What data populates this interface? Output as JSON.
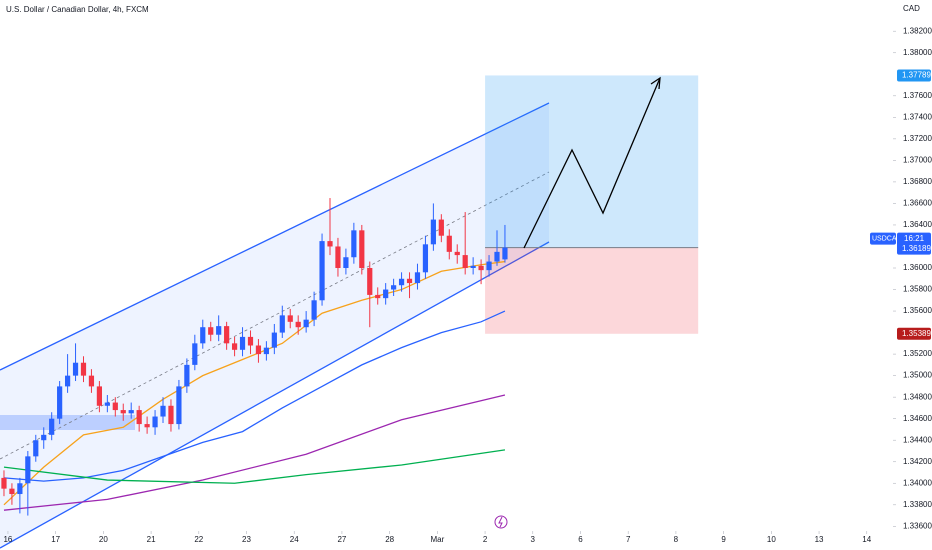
{
  "chart_data": {
    "type": "candlestick",
    "title": "U.S. Dollar / Canadian Dollar, 4h, FXCM",
    "currency": "CAD",
    "symbol": "USDCAD",
    "countdown": "16:21",
    "up_color": "#2962ff",
    "down_color": "#f23645",
    "open": [
      1.3405,
      1.3395,
      1.339,
      1.34,
      1.3425,
      1.344,
      1.3445,
      1.346,
      1.349,
      1.35,
      1.3512,
      1.35,
      1.349,
      1.3472,
      1.3475,
      1.3468,
      1.3465,
      1.3468,
      1.3455,
      1.3452,
      1.3462,
      1.3472,
      1.3455,
      1.349,
      1.351,
      1.353,
      1.3545,
      1.3538,
      1.3546,
      1.353,
      1.3524,
      1.3536,
      1.3528,
      1.352,
      1.3526,
      1.354,
      1.3556,
      1.355,
      1.3545,
      1.3552,
      1.357,
      1.3625,
      1.362,
      1.36,
      1.361,
      1.3635,
      1.36,
      1.3575,
      1.3572,
      1.358,
      1.3584,
      1.359,
      1.3586,
      1.3596,
      1.3622,
      1.3645,
      1.363,
      1.3615,
      1.3612,
      1.36,
      1.3602,
      1.3598,
      1.3606,
      1.3608
    ],
    "high": [
      1.3412,
      1.34,
      1.3405,
      1.343,
      1.3445,
      1.3452,
      1.3466,
      1.3495,
      1.352,
      1.353,
      1.3518,
      1.3506,
      1.3495,
      1.3482,
      1.348,
      1.3474,
      1.3475,
      1.3472,
      1.3462,
      1.3468,
      1.348,
      1.3478,
      1.3496,
      1.3516,
      1.3538,
      1.3552,
      1.355,
      1.3556,
      1.355,
      1.3536,
      1.3545,
      1.3542,
      1.3534,
      1.3532,
      1.3548,
      1.3565,
      1.3562,
      1.3556,
      1.356,
      1.3578,
      1.3632,
      1.3665,
      1.3628,
      1.3618,
      1.3642,
      1.364,
      1.3606,
      1.3582,
      1.3586,
      1.359,
      1.3596,
      1.3596,
      1.3604,
      1.363,
      1.366,
      1.365,
      1.3636,
      1.3622,
      1.3652,
      1.361,
      1.3608,
      1.3612,
      1.3635,
      1.364
    ],
    "low": [
      1.3388,
      1.338,
      1.3372,
      1.337,
      1.342,
      1.3432,
      1.344,
      1.3455,
      1.3484,
      1.3495,
      1.3494,
      1.3484,
      1.3466,
      1.3466,
      1.3462,
      1.3458,
      1.346,
      1.3448,
      1.3446,
      1.3445,
      1.3456,
      1.3448,
      1.345,
      1.3484,
      1.3505,
      1.3525,
      1.3532,
      1.3532,
      1.3524,
      1.3518,
      1.3518,
      1.352,
      1.3512,
      1.3514,
      1.352,
      1.3535,
      1.3544,
      1.3538,
      1.354,
      1.3546,
      1.3565,
      1.3612,
      1.3592,
      1.3594,
      1.3604,
      1.3594,
      1.3545,
      1.3566,
      1.3566,
      1.3574,
      1.3578,
      1.3572,
      1.358,
      1.359,
      1.3616,
      1.3624,
      1.3608,
      1.3604,
      1.3594,
      1.3594,
      1.3585,
      1.3592,
      1.3602,
      1.3605
    ],
    "close": [
      1.3395,
      1.339,
      1.34,
      1.3425,
      1.344,
      1.3445,
      1.346,
      1.349,
      1.35,
      1.3512,
      1.35,
      1.349,
      1.3472,
      1.3475,
      1.3468,
      1.3465,
      1.3468,
      1.3455,
      1.3452,
      1.3462,
      1.3472,
      1.3455,
      1.349,
      1.351,
      1.353,
      1.3545,
      1.3538,
      1.3546,
      1.353,
      1.3524,
      1.3536,
      1.3528,
      1.352,
      1.3526,
      1.354,
      1.3556,
      1.355,
      1.3545,
      1.3552,
      1.357,
      1.3625,
      1.362,
      1.36,
      1.361,
      1.3635,
      1.36,
      1.3575,
      1.3572,
      1.358,
      1.3584,
      1.359,
      1.3586,
      1.3596,
      1.3622,
      1.3645,
      1.363,
      1.3615,
      1.3612,
      1.36,
      1.3602,
      1.3598,
      1.3606,
      1.3615,
      1.3619
    ],
    "series": [
      {
        "color": "#f7a21b",
        "x": [
          0,
          5,
          10,
          15,
          20,
          25,
          30,
          35,
          40,
          45,
          50,
          55,
          60,
          63
        ],
        "values": [
          1.338,
          1.3415,
          1.3445,
          1.3452,
          1.3478,
          1.35,
          1.3515,
          1.353,
          1.3558,
          1.357,
          1.358,
          1.3597,
          1.3603,
          1.3606
        ]
      },
      {
        "color": "#2962ff",
        "x": [
          0,
          5,
          10,
          15,
          20,
          25,
          30,
          35,
          40,
          45,
          50,
          55,
          60,
          63
        ],
        "values": [
          1.3405,
          1.3402,
          1.3405,
          1.3412,
          1.3425,
          1.3438,
          1.3448,
          1.347,
          1.349,
          1.351,
          1.3526,
          1.354,
          1.355,
          1.356
        ]
      },
      {
        "color": "#9c27b0",
        "x": [
          0,
          13,
          25,
          38,
          50,
          63
        ],
        "values": [
          1.3375,
          1.3385,
          1.3403,
          1.3427,
          1.3459,
          1.3482
        ]
      },
      {
        "color": "#00b050",
        "x": [
          0,
          13,
          29,
          38,
          50,
          63
        ],
        "values": [
          1.3415,
          1.3403,
          1.34,
          1.3408,
          1.3417,
          1.3431
        ]
      }
    ],
    "position": {
      "entry": 1.36189,
      "target": 1.37789,
      "stop": 1.35389,
      "start": 60.5,
      "end": 87.3
    },
    "xlim": [
      -0.5,
      111.8
    ],
    "ylim": [
      1.3338,
      1.3849
    ],
    "xticks": [
      {
        "value": 0.5,
        "label": "16"
      },
      {
        "value": 6.5,
        "label": "17"
      },
      {
        "value": 12.5,
        "label": "20"
      },
      {
        "value": 18.5,
        "label": "21"
      },
      {
        "value": 24.5,
        "label": "22"
      },
      {
        "value": 30.5,
        "label": "23"
      },
      {
        "value": 36.5,
        "label": "24"
      },
      {
        "value": 42.5,
        "label": "27"
      },
      {
        "value": 48.5,
        "label": "28"
      },
      {
        "value": 54.5,
        "label": "Mar"
      },
      {
        "value": 60.5,
        "label": "2"
      },
      {
        "value": 66.5,
        "label": "3"
      },
      {
        "value": 72.5,
        "label": "6"
      },
      {
        "value": 78.5,
        "label": "7"
      },
      {
        "value": 84.5,
        "label": "8"
      },
      {
        "value": 90.5,
        "label": "9"
      },
      {
        "value": 96.5,
        "label": "10"
      },
      {
        "value": 102.5,
        "label": "13"
      },
      {
        "value": 108.5,
        "label": "14"
      }
    ],
    "yticks": [
      {
        "value": 1.382,
        "label": "1.38200"
      },
      {
        "value": 1.38,
        "label": "1.38000"
      },
      {
        "value": 1.376,
        "label": "1.37600"
      },
      {
        "value": 1.374,
        "label": "1.37400"
      },
      {
        "value": 1.372,
        "label": "1.37200"
      },
      {
        "value": 1.37,
        "label": "1.37000"
      },
      {
        "value": 1.368,
        "label": "1.36800"
      },
      {
        "value": 1.366,
        "label": "1.36600"
      },
      {
        "value": 1.364,
        "label": "1.36400"
      },
      {
        "value": 1.36,
        "label": "1.36000"
      },
      {
        "value": 1.358,
        "label": "1.35800"
      },
      {
        "value": 1.356,
        "label": "1.35600"
      },
      {
        "value": 1.352,
        "label": "1.35200"
      },
      {
        "value": 1.35,
        "label": "1.35000"
      },
      {
        "value": 1.348,
        "label": "1.34800"
      },
      {
        "value": 1.346,
        "label": "1.34600"
      },
      {
        "value": 1.344,
        "label": "1.34400"
      },
      {
        "value": 1.342,
        "label": "1.34200"
      },
      {
        "value": 1.34,
        "label": "1.34000"
      },
      {
        "value": 1.338,
        "label": "1.33800"
      },
      {
        "value": 1.336,
        "label": "1.33600"
      }
    ]
  }
}
